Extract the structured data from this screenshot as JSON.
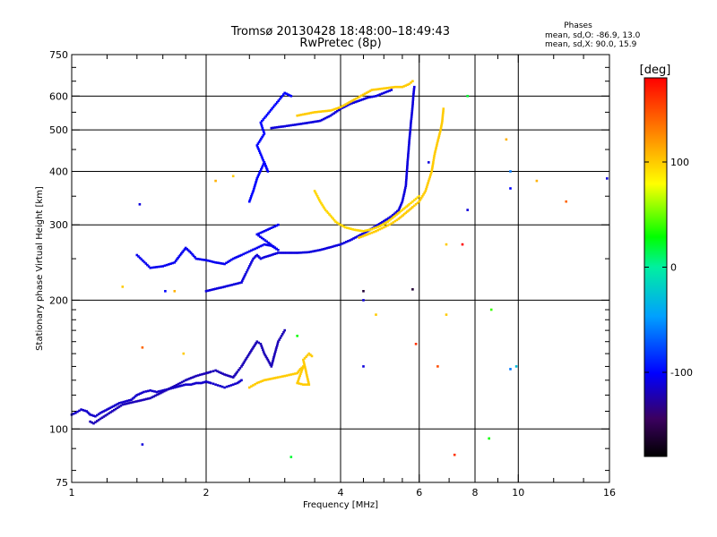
{
  "header": {
    "title_line1": "Tromsø 20130428 18:48:00–18:49:43",
    "title_line2": "RwPretec (8p)",
    "info_title": "Phases",
    "info_line1": "mean, sd,O: -86.9, 13.0",
    "info_line2": "mean, sd,X:  90.0, 15.9"
  },
  "chart_data": {
    "type": "scatter",
    "xlabel": "Frequency [MHz]",
    "ylabel": "Stationary phase Virtual Height [km]",
    "x_scale": "log",
    "y_scale": "log",
    "xlim": [
      1,
      16
    ],
    "ylim": [
      75,
      750
    ],
    "x_ticks": [
      1,
      2,
      4,
      6,
      8,
      10,
      16
    ],
    "x_minor_ticks": [
      1.2,
      1.4,
      1.6,
      1.8,
      2.5,
      3,
      3.5,
      4.5,
      5,
      5.5,
      7,
      9,
      12,
      14
    ],
    "x_gridlines": [
      2,
      4,
      6,
      8,
      10
    ],
    "y_ticks": [
      75,
      100,
      200,
      300,
      400,
      500,
      600,
      750
    ],
    "y_minor_ticks": [
      80,
      90,
      110,
      120,
      130,
      140,
      150,
      160,
      170,
      180,
      190,
      250,
      350,
      450,
      550,
      650,
      700
    ],
    "y_gridlines": [
      100,
      200,
      300,
      400,
      500,
      600
    ],
    "grid": true,
    "colorbar": {
      "label": "[deg]",
      "range": [
        -180,
        180
      ],
      "ticks": [
        100,
        0,
        -100
      ],
      "colormap": "rainbow"
    },
    "traces": [
      {
        "name": "",
        "phase": -115,
        "points": [
          [
            1.0,
            108
          ],
          [
            1.02,
            109
          ],
          [
            1.05,
            111
          ],
          [
            1.08,
            110
          ],
          [
            1.1,
            108
          ],
          [
            1.13,
            107
          ],
          [
            1.16,
            109
          ],
          [
            1.2,
            111
          ],
          [
            1.24,
            113
          ],
          [
            1.28,
            115
          ],
          [
            1.32,
            116
          ],
          [
            1.36,
            117
          ],
          [
            1.4,
            120
          ],
          [
            1.45,
            122
          ],
          [
            1.5,
            123
          ],
          [
            1.55,
            122
          ],
          [
            1.6,
            123
          ],
          [
            1.65,
            124
          ],
          [
            1.7,
            125
          ],
          [
            1.75,
            126
          ],
          [
            1.8,
            127
          ],
          [
            1.85,
            127
          ],
          [
            1.9,
            128
          ],
          [
            1.95,
            128
          ],
          [
            2.0,
            129
          ],
          [
            2.05,
            128
          ],
          [
            2.1,
            127
          ],
          [
            2.15,
            126
          ],
          [
            2.2,
            125
          ],
          [
            2.25,
            126
          ],
          [
            2.3,
            127
          ],
          [
            2.35,
            128
          ],
          [
            2.4,
            130
          ]
        ]
      },
      {
        "name": "",
        "phase": -120,
        "points": [
          [
            1.1,
            104
          ],
          [
            1.12,
            103
          ],
          [
            1.15,
            105
          ],
          [
            1.3,
            114
          ],
          [
            1.5,
            118
          ],
          [
            1.7,
            126
          ],
          [
            1.8,
            130
          ],
          [
            1.9,
            133
          ],
          [
            2.0,
            135
          ],
          [
            2.05,
            136
          ],
          [
            2.1,
            137
          ],
          [
            2.2,
            134
          ],
          [
            2.3,
            132
          ],
          [
            2.35,
            136
          ],
          [
            2.4,
            140
          ],
          [
            2.45,
            145
          ],
          [
            2.5,
            150
          ],
          [
            2.55,
            155
          ],
          [
            2.6,
            160
          ],
          [
            2.65,
            158
          ],
          [
            2.7,
            150
          ],
          [
            2.75,
            145
          ],
          [
            2.8,
            140
          ],
          [
            2.85,
            150
          ],
          [
            2.9,
            160
          ],
          [
            2.95,
            165
          ],
          [
            3.0,
            170
          ]
        ]
      },
      {
        "name": "",
        "phase": 100,
        "points": [
          [
            2.5,
            125
          ],
          [
            2.6,
            128
          ],
          [
            2.7,
            130
          ],
          [
            2.8,
            131
          ],
          [
            2.9,
            132
          ],
          [
            3.0,
            133
          ],
          [
            3.1,
            134
          ],
          [
            3.2,
            135
          ],
          [
            3.25,
            138
          ],
          [
            3.3,
            140
          ],
          [
            3.2,
            128
          ],
          [
            3.3,
            127
          ],
          [
            3.4,
            127
          ],
          [
            3.3,
            145
          ],
          [
            3.4,
            150
          ],
          [
            3.45,
            148
          ]
        ]
      },
      {
        "name": "",
        "phase": -110,
        "points": [
          [
            2.0,
            210
          ],
          [
            2.2,
            215
          ],
          [
            2.4,
            220
          ],
          [
            2.45,
            230
          ],
          [
            2.5,
            240
          ],
          [
            2.55,
            250
          ],
          [
            2.6,
            255
          ],
          [
            2.65,
            250
          ],
          [
            2.7,
            252
          ],
          [
            2.8,
            255
          ],
          [
            2.9,
            258
          ],
          [
            3.0,
            258
          ],
          [
            3.2,
            258
          ],
          [
            3.4,
            259
          ],
          [
            3.6,
            262
          ],
          [
            3.8,
            266
          ],
          [
            4.0,
            270
          ],
          [
            4.2,
            276
          ],
          [
            4.4,
            283
          ],
          [
            4.6,
            290
          ],
          [
            4.8,
            298
          ],
          [
            5.0,
            306
          ],
          [
            5.2,
            314
          ],
          [
            5.4,
            325
          ],
          [
            5.5,
            340
          ],
          [
            5.6,
            370
          ],
          [
            5.65,
            420
          ],
          [
            5.7,
            470
          ],
          [
            5.75,
            520
          ],
          [
            5.8,
            570
          ],
          [
            5.82,
            600
          ],
          [
            5.85,
            630
          ]
        ]
      },
      {
        "name": "",
        "phase": -105,
        "points": [
          [
            1.4,
            255
          ],
          [
            1.5,
            238
          ],
          [
            1.6,
            240
          ],
          [
            1.7,
            245
          ],
          [
            1.75,
            255
          ],
          [
            1.8,
            265
          ],
          [
            1.85,
            258
          ],
          [
            1.9,
            250
          ],
          [
            2.0,
            248
          ],
          [
            2.1,
            245
          ],
          [
            2.2,
            243
          ],
          [
            2.3,
            250
          ],
          [
            2.4,
            255
          ],
          [
            2.5,
            260
          ],
          [
            2.6,
            265
          ],
          [
            2.7,
            270
          ],
          [
            2.8,
            268
          ],
          [
            2.9,
            262
          ],
          [
            2.6,
            285
          ],
          [
            2.7,
            290
          ],
          [
            2.8,
            295
          ],
          [
            2.9,
            300
          ]
        ]
      },
      {
        "name": "",
        "phase": 95,
        "points": [
          [
            3.5,
            360
          ],
          [
            3.6,
            340
          ],
          [
            3.7,
            325
          ],
          [
            3.8,
            315
          ],
          [
            3.9,
            305
          ],
          [
            4.0,
            300
          ],
          [
            4.1,
            296
          ],
          [
            4.3,
            292
          ],
          [
            4.5,
            290
          ],
          [
            4.7,
            293
          ],
          [
            4.9,
            298
          ],
          [
            5.1,
            305
          ],
          [
            5.3,
            315
          ],
          [
            5.5,
            325
          ],
          [
            5.7,
            335
          ],
          [
            5.9,
            345
          ],
          [
            6.0,
            350
          ]
        ]
      },
      {
        "name": "",
        "phase": 100,
        "points": [
          [
            4.4,
            280
          ],
          [
            4.6,
            285
          ],
          [
            4.8,
            290
          ],
          [
            5.0,
            296
          ],
          [
            5.2,
            302
          ],
          [
            5.4,
            310
          ],
          [
            5.6,
            320
          ],
          [
            5.8,
            330
          ],
          [
            6.0,
            340
          ],
          [
            6.2,
            360
          ],
          [
            6.3,
            380
          ],
          [
            6.4,
            400
          ],
          [
            6.45,
            420
          ],
          [
            6.5,
            440
          ],
          [
            6.6,
            470
          ],
          [
            6.7,
            500
          ],
          [
            6.75,
            520
          ],
          [
            6.8,
            560
          ]
        ]
      },
      {
        "name": "",
        "phase": -110,
        "points": [
          [
            2.8,
            505
          ],
          [
            3.0,
            510
          ],
          [
            3.2,
            515
          ],
          [
            3.4,
            520
          ],
          [
            3.6,
            525
          ],
          [
            3.8,
            540
          ],
          [
            4.0,
            560
          ],
          [
            4.2,
            575
          ],
          [
            4.4,
            585
          ],
          [
            4.6,
            595
          ],
          [
            4.8,
            600
          ],
          [
            5.0,
            610
          ],
          [
            5.2,
            620
          ]
        ]
      },
      {
        "name": "",
        "phase": 100,
        "points": [
          [
            3.2,
            540
          ],
          [
            3.5,
            550
          ],
          [
            3.8,
            555
          ],
          [
            4.0,
            565
          ],
          [
            4.7,
            620
          ],
          [
            5.0,
            625
          ],
          [
            5.3,
            630
          ],
          [
            5.5,
            630
          ],
          [
            5.7,
            640
          ],
          [
            5.8,
            650
          ]
        ]
      },
      {
        "name": "",
        "phase": -100,
        "points": [
          [
            2.5,
            340
          ],
          [
            2.55,
            360
          ],
          [
            2.6,
            385
          ],
          [
            2.7,
            420
          ],
          [
            2.75,
            400
          ],
          [
            2.6,
            460
          ],
          [
            2.7,
            490
          ],
          [
            2.65,
            520
          ],
          [
            3.0,
            610
          ],
          [
            3.1,
            600
          ]
        ]
      }
    ],
    "scatter_points": [
      {
        "x": 1.3,
        "y": 215,
        "phase": 100
      },
      {
        "x": 1.42,
        "y": 335,
        "phase": -110
      },
      {
        "x": 1.44,
        "y": 155,
        "phase": 140
      },
      {
        "x": 1.44,
        "y": 92,
        "phase": -110
      },
      {
        "x": 1.62,
        "y": 210,
        "phase": -100
      },
      {
        "x": 1.7,
        "y": 210,
        "phase": 110
      },
      {
        "x": 1.78,
        "y": 150,
        "phase": 100
      },
      {
        "x": 2.1,
        "y": 380,
        "phase": 110
      },
      {
        "x": 2.3,
        "y": 390,
        "phase": 100
      },
      {
        "x": 3.1,
        "y": 86,
        "phase": 20
      },
      {
        "x": 3.2,
        "y": 165,
        "phase": 30
      },
      {
        "x": 4.5,
        "y": 210,
        "phase": -160
      },
      {
        "x": 4.5,
        "y": 200,
        "phase": -110
      },
      {
        "x": 4.5,
        "y": 140,
        "phase": -110
      },
      {
        "x": 4.8,
        "y": 185,
        "phase": 100
      },
      {
        "x": 5.8,
        "y": 212,
        "phase": -160
      },
      {
        "x": 5.9,
        "y": 158,
        "phase": 160
      },
      {
        "x": 6.3,
        "y": 420,
        "phase": -110
      },
      {
        "x": 6.6,
        "y": 140,
        "phase": 150
      },
      {
        "x": 6.9,
        "y": 185,
        "phase": 100
      },
      {
        "x": 6.9,
        "y": 270,
        "phase": 100
      },
      {
        "x": 7.2,
        "y": 87,
        "phase": 160
      },
      {
        "x": 7.5,
        "y": 270,
        "phase": 180
      },
      {
        "x": 7.7,
        "y": 325,
        "phase": -110
      },
      {
        "x": 7.7,
        "y": 600,
        "phase": 20
      },
      {
        "x": 8.6,
        "y": 95,
        "phase": 30
      },
      {
        "x": 8.7,
        "y": 190,
        "phase": 40
      },
      {
        "x": 9.4,
        "y": 475,
        "phase": 110
      },
      {
        "x": 9.6,
        "y": 365,
        "phase": -100
      },
      {
        "x": 9.6,
        "y": 400,
        "phase": -60
      },
      {
        "x": 9.6,
        "y": 138,
        "phase": -60
      },
      {
        "x": 9.9,
        "y": 140,
        "phase": -30
      },
      {
        "x": 11,
        "y": 380,
        "phase": 110
      },
      {
        "x": 12.8,
        "y": 340,
        "phase": 140
      },
      {
        "x": 15.8,
        "y": 385,
        "phase": -110
      }
    ]
  }
}
